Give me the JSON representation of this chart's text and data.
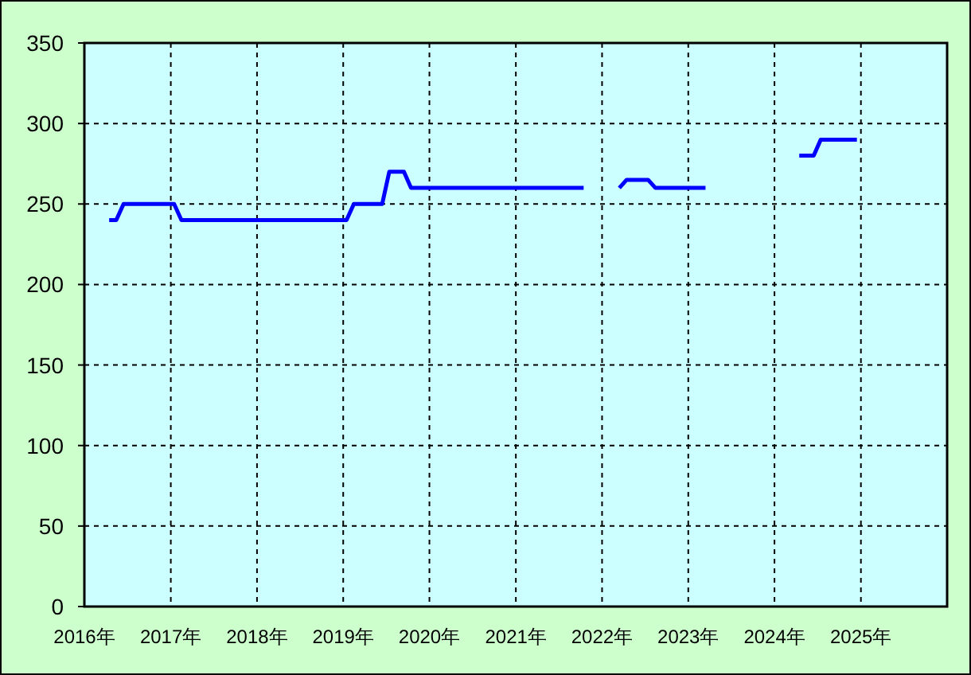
{
  "chart_data": {
    "type": "line",
    "x": [
      "2016-04-15",
      "2016-05-15",
      "2016-06-15",
      "2016-07-15",
      "2016-08-15",
      "2016-09-15",
      "2016-10-15",
      "2016-11-15",
      "2016-12-15",
      "2017-01-15",
      "2017-02-15",
      "2017-03-15",
      "2017-04-15",
      "2017-05-15",
      "2017-06-15",
      "2017-07-15",
      "2017-08-15",
      "2017-09-15",
      "2017-10-15",
      "2017-11-15",
      "2017-12-15",
      "2018-01-15",
      "2018-02-15",
      "2018-03-15",
      "2018-04-15",
      "2018-05-15",
      "2018-06-15",
      "2018-07-15",
      "2018-08-15",
      "2018-09-15",
      "2018-10-15",
      "2018-11-15",
      "2018-12-15",
      "2019-01-15",
      "2019-02-15",
      "2019-03-15",
      "2019-04-15",
      "2019-05-15",
      "2019-06-15",
      "2019-07-15",
      "2019-08-15",
      "2019-09-15",
      "2019-10-15",
      "2019-11-15",
      "2019-12-15",
      "2020-01-15",
      "2020-02-15",
      "2020-03-15",
      "2020-04-15",
      "2020-05-15",
      "2020-06-15",
      "2020-07-15",
      "2020-08-15",
      "2020-09-15",
      "2020-10-15",
      "2020-11-15",
      "2020-12-15",
      "2021-01-15",
      "2021-02-15",
      "2021-03-15",
      "2021-04-15",
      "2021-05-15",
      "2021-06-15",
      "2021-07-15",
      "2021-08-15",
      "2021-09-15",
      "2021-10-15",
      "2021-11-15",
      "2021-12-15",
      "2022-01-15",
      "2022-02-15",
      "2022-03-15",
      "2022-04-15",
      "2022-05-15",
      "2022-06-15",
      "2022-07-15",
      "2022-08-15",
      "2022-09-15",
      "2022-10-15",
      "2022-11-15",
      "2022-12-15",
      "2023-01-15",
      "2023-02-15",
      "2023-03-15",
      "2023-04-15",
      "2023-05-15",
      "2023-06-15",
      "2023-07-15",
      "2023-08-15",
      "2023-09-15",
      "2023-10-15",
      "2023-11-15",
      "2023-12-15",
      "2024-01-15",
      "2024-02-15",
      "2024-03-15",
      "2024-04-15",
      "2024-05-15",
      "2024-06-15",
      "2024-07-15",
      "2024-08-15",
      "2024-09-15",
      "2024-10-15",
      "2024-11-15",
      "2024-12-15"
    ],
    "series": [
      {
        "color": "#0000ff",
        "values": [
          240,
          240,
          250,
          250,
          250,
          250,
          250,
          250,
          250,
          250,
          240,
          240,
          240,
          240,
          240,
          240,
          240,
          240,
          240,
          240,
          240,
          240,
          240,
          240,
          240,
          240,
          240,
          240,
          240,
          240,
          240,
          240,
          240,
          240,
          250,
          250,
          250,
          250,
          250,
          270,
          270,
          270,
          260,
          260,
          260,
          260,
          260,
          260,
          260,
          260,
          260,
          260,
          260,
          260,
          260,
          260,
          260,
          260,
          260,
          260,
          260,
          260,
          260,
          260,
          260,
          260,
          260,
          null,
          null,
          null,
          null,
          260,
          265,
          265,
          265,
          265,
          260,
          260,
          260,
          260,
          260,
          260,
          260,
          260,
          null,
          null,
          null,
          null,
          null,
          null,
          null,
          null,
          null,
          null,
          null,
          null,
          280,
          280,
          280,
          290,
          290,
          290,
          290,
          290,
          290
        ]
      }
    ],
    "xlim": [
      "2016",
      "2026"
    ],
    "xticks": [
      {
        "value": "2016",
        "label": "2016年"
      },
      {
        "value": "2017",
        "label": "2017年"
      },
      {
        "value": "2018",
        "label": "2018年"
      },
      {
        "value": "2019",
        "label": "2019年"
      },
      {
        "value": "2020",
        "label": "2020年"
      },
      {
        "value": "2021",
        "label": "2021年"
      },
      {
        "value": "2022",
        "label": "2022年"
      },
      {
        "value": "2023",
        "label": "2023年"
      },
      {
        "value": "2024",
        "label": "2024年"
      },
      {
        "value": "2025",
        "label": "2025年"
      }
    ],
    "ylim": [
      0,
      350
    ],
    "yticks": [
      0,
      50,
      100,
      150,
      200,
      250,
      300,
      350
    ],
    "grid": true
  }
}
